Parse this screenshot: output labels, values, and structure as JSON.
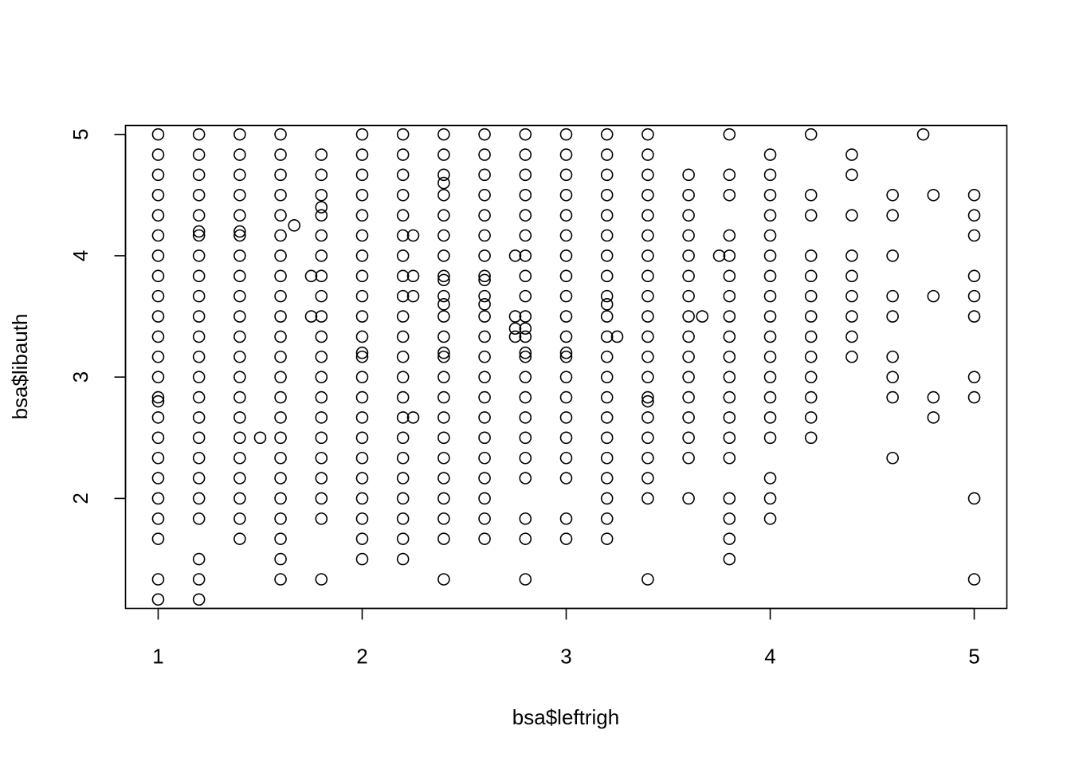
{
  "chart_data": {
    "type": "scatter",
    "title": "",
    "xlabel": "bsa$leftrigh",
    "ylabel": "bsa$libauth",
    "xlim": [
      0.84,
      5.16
    ],
    "ylim": [
      1.0933,
      5.0733
    ],
    "x_ticks": [
      1,
      2,
      3,
      4,
      5
    ],
    "y_ticks": [
      2,
      3,
      4,
      5
    ],
    "x_tick_labels": [
      "1",
      "2",
      "3",
      "4",
      "5"
    ],
    "y_tick_labels": [
      "2",
      "3",
      "4",
      "5"
    ],
    "grid": false,
    "marker": "open-circle",
    "columns": [
      {
        "x": 1.0,
        "y": [
          5.0,
          4.833,
          4.667,
          4.5,
          4.333,
          4.167,
          4.0,
          3.833,
          3.667,
          3.5,
          3.333,
          3.167,
          3.0,
          2.833,
          2.8,
          2.667,
          2.5,
          2.333,
          2.167,
          2.0,
          1.833,
          1.667,
          1.333,
          1.167
        ]
      },
      {
        "x": 1.2,
        "y": [
          5.0,
          4.833,
          4.667,
          4.5,
          4.333,
          4.2,
          4.167,
          4.0,
          3.833,
          3.667,
          3.5,
          3.333,
          3.167,
          3.0,
          2.833,
          2.667,
          2.5,
          2.333,
          2.167,
          2.0,
          1.833,
          1.5,
          1.333,
          1.167
        ]
      },
      {
        "x": 1.4,
        "y": [
          5.0,
          4.833,
          4.667,
          4.5,
          4.333,
          4.2,
          4.167,
          4.0,
          3.833,
          3.667,
          3.5,
          3.333,
          3.167,
          3.0,
          2.833,
          2.667,
          2.5,
          2.333,
          2.167,
          2.0,
          1.833,
          1.667
        ]
      },
      {
        "x": 1.6,
        "y": [
          5.0,
          4.833,
          4.667,
          4.5,
          4.333,
          4.167,
          4.0,
          3.833,
          3.667,
          3.5,
          3.333,
          3.167,
          3.0,
          2.833,
          2.667,
          2.5,
          2.333,
          2.167,
          2.0,
          1.833,
          1.667,
          1.5,
          1.333
        ]
      },
      {
        "x": 1.8,
        "y": [
          4.833,
          4.667,
          4.5,
          4.4,
          4.333,
          4.167,
          4.0,
          3.833,
          3.667,
          3.5,
          3.333,
          3.167,
          3.0,
          2.833,
          2.667,
          2.5,
          2.333,
          2.167,
          2.0,
          1.833,
          1.333
        ]
      },
      {
        "x": 2.0,
        "y": [
          5.0,
          4.833,
          4.667,
          4.5,
          4.333,
          4.167,
          4.0,
          3.833,
          3.667,
          3.5,
          3.333,
          3.2,
          3.167,
          3.0,
          2.833,
          2.667,
          2.5,
          2.333,
          2.167,
          2.0,
          1.833,
          1.667,
          1.5
        ]
      },
      {
        "x": 2.2,
        "y": [
          5.0,
          4.833,
          4.667,
          4.5,
          4.333,
          4.167,
          4.0,
          3.833,
          3.667,
          3.5,
          3.333,
          3.167,
          3.0,
          2.833,
          2.667,
          2.5,
          2.333,
          2.167,
          2.0,
          1.833,
          1.667,
          1.5
        ]
      },
      {
        "x": 2.4,
        "y": [
          5.0,
          4.833,
          4.667,
          4.6,
          4.5,
          4.333,
          4.167,
          4.0,
          3.833,
          3.8,
          3.667,
          3.6,
          3.5,
          3.333,
          3.2,
          3.167,
          3.0,
          2.833,
          2.667,
          2.5,
          2.333,
          2.167,
          2.0,
          1.833,
          1.667,
          1.333
        ]
      },
      {
        "x": 2.6,
        "y": [
          5.0,
          4.833,
          4.667,
          4.5,
          4.333,
          4.167,
          4.0,
          3.833,
          3.8,
          3.667,
          3.6,
          3.5,
          3.333,
          3.167,
          3.0,
          2.833,
          2.667,
          2.5,
          2.333,
          2.167,
          2.0,
          1.833,
          1.667
        ]
      },
      {
        "x": 2.8,
        "y": [
          5.0,
          4.833,
          4.667,
          4.5,
          4.333,
          4.167,
          4.0,
          3.833,
          3.667,
          3.5,
          3.4,
          3.333,
          3.2,
          3.167,
          3.0,
          2.833,
          2.667,
          2.5,
          2.333,
          2.167,
          1.833,
          1.667,
          1.333
        ]
      },
      {
        "x": 3.0,
        "y": [
          5.0,
          4.833,
          4.667,
          4.5,
          4.333,
          4.167,
          4.0,
          3.833,
          3.667,
          3.5,
          3.333,
          3.2,
          3.167,
          3.0,
          2.833,
          2.667,
          2.5,
          2.333,
          2.167,
          1.833,
          1.667
        ]
      },
      {
        "x": 3.2,
        "y": [
          5.0,
          4.833,
          4.667,
          4.5,
          4.333,
          4.167,
          4.0,
          3.833,
          3.667,
          3.6,
          3.5,
          3.333,
          3.167,
          3.0,
          2.833,
          2.667,
          2.5,
          2.333,
          2.167,
          2.0,
          1.833,
          1.667
        ]
      },
      {
        "x": 3.4,
        "y": [
          5.0,
          4.833,
          4.667,
          4.5,
          4.333,
          4.167,
          4.0,
          3.833,
          3.667,
          3.5,
          3.333,
          3.167,
          3.0,
          2.833,
          2.8,
          2.667,
          2.5,
          2.333,
          2.167,
          2.0,
          1.333
        ]
      },
      {
        "x": 3.6,
        "y": [
          4.667,
          4.5,
          4.333,
          4.167,
          4.0,
          3.833,
          3.667,
          3.5,
          3.333,
          3.167,
          3.0,
          2.833,
          2.667,
          2.5,
          2.333,
          2.0
        ]
      },
      {
        "x": 3.8,
        "y": [
          5.0,
          4.667,
          4.5,
          4.167,
          4.0,
          3.833,
          3.667,
          3.5,
          3.333,
          3.167,
          3.0,
          2.833,
          2.667,
          2.5,
          2.333,
          2.0,
          1.833,
          1.667,
          1.5
        ]
      },
      {
        "x": 4.0,
        "y": [
          4.833,
          4.667,
          4.5,
          4.333,
          4.167,
          4.0,
          3.833,
          3.667,
          3.5,
          3.333,
          3.167,
          3.0,
          2.833,
          2.667,
          2.5,
          2.167,
          2.0,
          1.833
        ]
      },
      {
        "x": 4.2,
        "y": [
          5.0,
          4.5,
          4.333,
          4.0,
          3.833,
          3.667,
          3.5,
          3.333,
          3.167,
          3.0,
          2.833,
          2.667,
          2.5
        ]
      },
      {
        "x": 4.4,
        "y": [
          4.833,
          4.667,
          4.333,
          4.0,
          3.833,
          3.667,
          3.5,
          3.333,
          3.167
        ]
      },
      {
        "x": 4.6,
        "y": [
          4.5,
          4.333,
          4.0,
          3.667,
          3.5,
          3.167,
          3.0,
          2.833,
          2.333
        ]
      },
      {
        "x": 4.8,
        "y": [
          4.5,
          3.667,
          2.833,
          2.667
        ]
      },
      {
        "x": 5.0,
        "y": [
          4.5,
          4.333,
          4.167,
          3.833,
          3.667,
          3.5,
          3.0,
          2.833,
          2.0,
          1.333
        ]
      }
    ],
    "extra_points": [
      {
        "x": 1.5,
        "y": 2.5
      },
      {
        "x": 1.667,
        "y": 4.25
      },
      {
        "x": 1.75,
        "y": 3.833
      },
      {
        "x": 1.75,
        "y": 3.5
      },
      {
        "x": 2.25,
        "y": 4.167
      },
      {
        "x": 2.25,
        "y": 3.833
      },
      {
        "x": 2.25,
        "y": 3.667
      },
      {
        "x": 2.25,
        "y": 2.667
      },
      {
        "x": 2.75,
        "y": 4.0
      },
      {
        "x": 2.75,
        "y": 3.5
      },
      {
        "x": 2.75,
        "y": 3.4
      },
      {
        "x": 2.75,
        "y": 3.333
      },
      {
        "x": 3.25,
        "y": 3.333
      },
      {
        "x": 3.667,
        "y": 3.5
      },
      {
        "x": 3.75,
        "y": 4.0
      },
      {
        "x": 4.75,
        "y": 5.0
      }
    ]
  }
}
